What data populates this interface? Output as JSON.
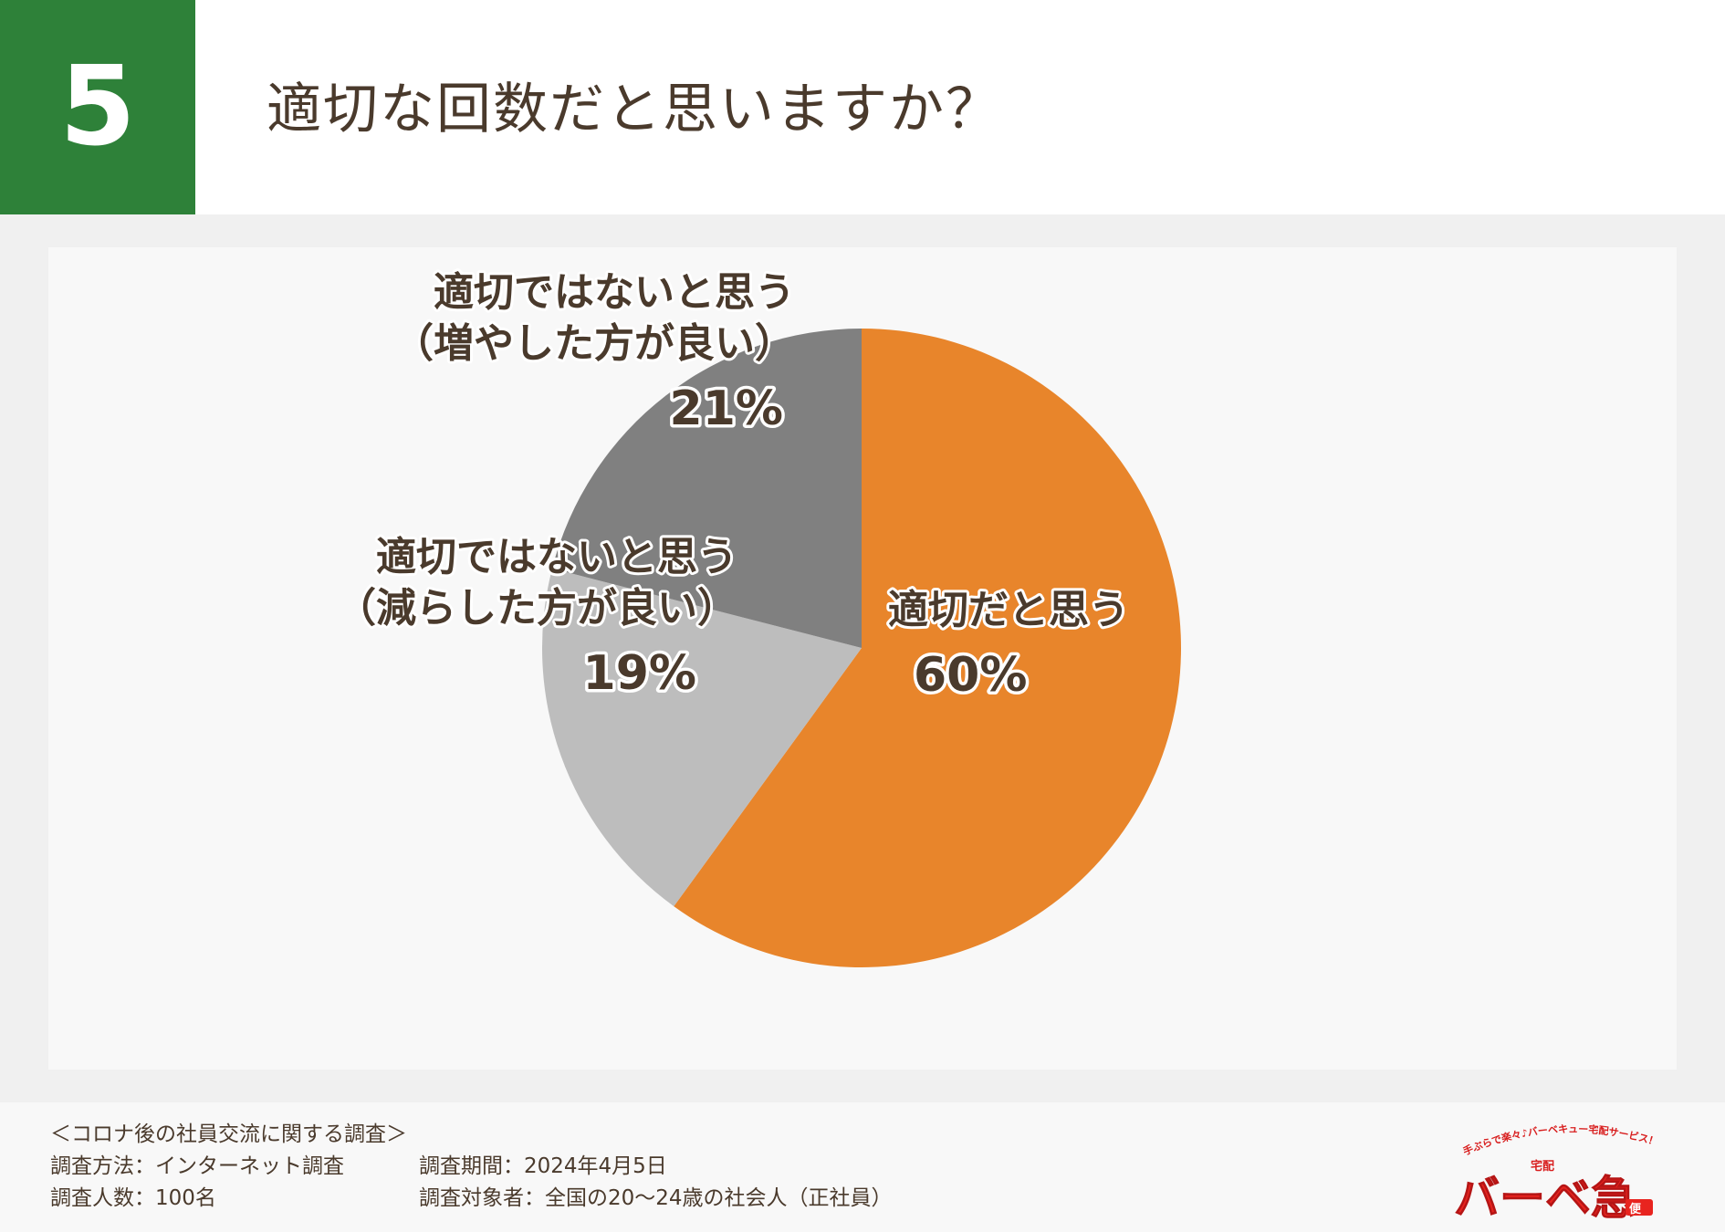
{
  "header": {
    "number": "5",
    "title": "適切な回数だと思いますか？"
  },
  "colors": {
    "accent_green": "#2e8139",
    "slice_orange": "#e8852b",
    "slice_dark_gray": "#808080",
    "slice_light_gray": "#bdbdbd",
    "label_text": "#4a3a2c"
  },
  "chart_data": {
    "type": "pie",
    "title": "",
    "slices": [
      {
        "label_lines": [
          "適切だと思う"
        ],
        "value": 60,
        "value_label": "60%",
        "color": "#e8852b"
      },
      {
        "label_lines": [
          "適切ではないと思う",
          "（減らした方が良い）"
        ],
        "value": 19,
        "value_label": "19%",
        "color": "#bdbdbd"
      },
      {
        "label_lines": [
          "適切ではないと思う",
          "（増やした方が良い）"
        ],
        "value": 21,
        "value_label": "21%",
        "color": "#808080"
      }
    ],
    "start": "12 o'clock",
    "direction": "clockwise",
    "legend": "none"
  },
  "footer": {
    "survey_title": "＜コロナ後の社員交流に関する調査＞",
    "method": "調査方法：インターネット調査",
    "period": "調査期間：2024年4月5日",
    "sample": "調査人数：100名",
    "target": "調査対象者：全国の20〜24歳の社会人（正社員）"
  },
  "logo": {
    "tagline": "手ぶらで楽々♪バーベキュー宅配サービス！",
    "small": "宅配",
    "brand": "バーベ急",
    "suffix": "便"
  }
}
